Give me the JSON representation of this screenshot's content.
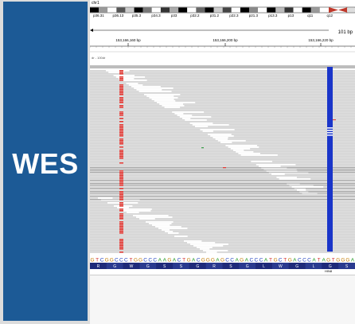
{
  "panel": {
    "label": "WES",
    "bg_color": "#1c5a96"
  },
  "igv": {
    "chromosome": "chr1",
    "ideogram_bands": [
      "p36.31",
      "p36.13",
      "p35.3",
      "p34.3",
      "p33",
      "p32.2",
      "p31.2",
      "p22.3",
      "p21.3",
      "p13.3",
      "p13",
      "q11",
      "q12"
    ],
    "span_label": "101 bp",
    "ruler_ticks": [
      "153,166,160 bp",
      "153,166,200 bp",
      "153,166,220 bp"
    ],
    "coverage_label": "dr - 100dr",
    "sequence": "GTCGGCCCTGGCCCAAGACTGACGGGAGCCAGACCCATGCTGACCCATAGTGGGA",
    "amino_acids": [
      "R",
      "G",
      "W",
      "G",
      "S",
      "S",
      "G",
      "R",
      "S",
      "G",
      "L",
      "W",
      "G",
      "L",
      "G",
      "S"
    ],
    "gene_label": "HIN8",
    "colors": {
      "mismatch": "#e0302a",
      "insertion_column": "#1a35c9",
      "read": "#d3d3d3",
      "read_white": "#ffffff"
    }
  }
}
